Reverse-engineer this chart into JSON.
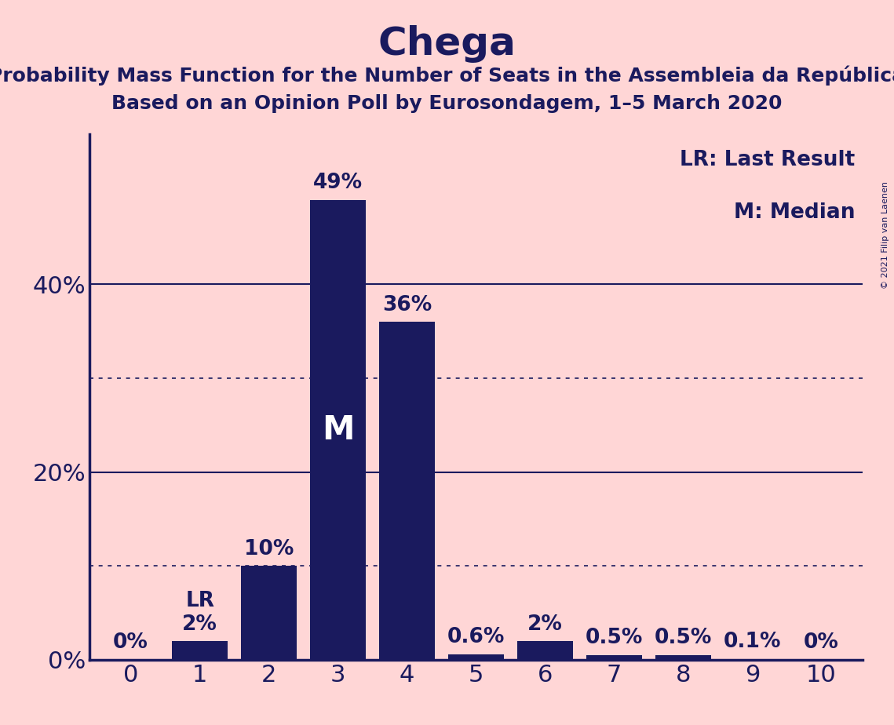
{
  "title": "Chega",
  "subtitle1": "Probability Mass Function for the Number of Seats in the Assembleia da República",
  "subtitle2": "Based on an Opinion Poll by Eurosondagem, 1–5 March 2020",
  "copyright": "© 2021 Filip van Laenen",
  "categories": [
    0,
    1,
    2,
    3,
    4,
    5,
    6,
    7,
    8,
    9,
    10
  ],
  "values": [
    0.0,
    2.0,
    10.0,
    49.0,
    36.0,
    0.6,
    2.0,
    0.5,
    0.5,
    0.1,
    0.0
  ],
  "labels": [
    "0%",
    "2%",
    "10%",
    "49%",
    "36%",
    "0.6%",
    "2%",
    "0.5%",
    "0.5%",
    "0.1%",
    "0%"
  ],
  "bar_color": "#1a1a5e",
  "background_color": "#ffd6d6",
  "text_color": "#1a1a5e",
  "title_fontsize": 36,
  "subtitle_fontsize": 18,
  "label_fontsize": 19,
  "axis_fontsize": 22,
  "yticks": [
    0,
    20,
    40
  ],
  "ylim": [
    0,
    56
  ],
  "lr_index": 1,
  "median_index": 3,
  "legend_text1": "LR: Last Result",
  "legend_text2": "M: Median"
}
